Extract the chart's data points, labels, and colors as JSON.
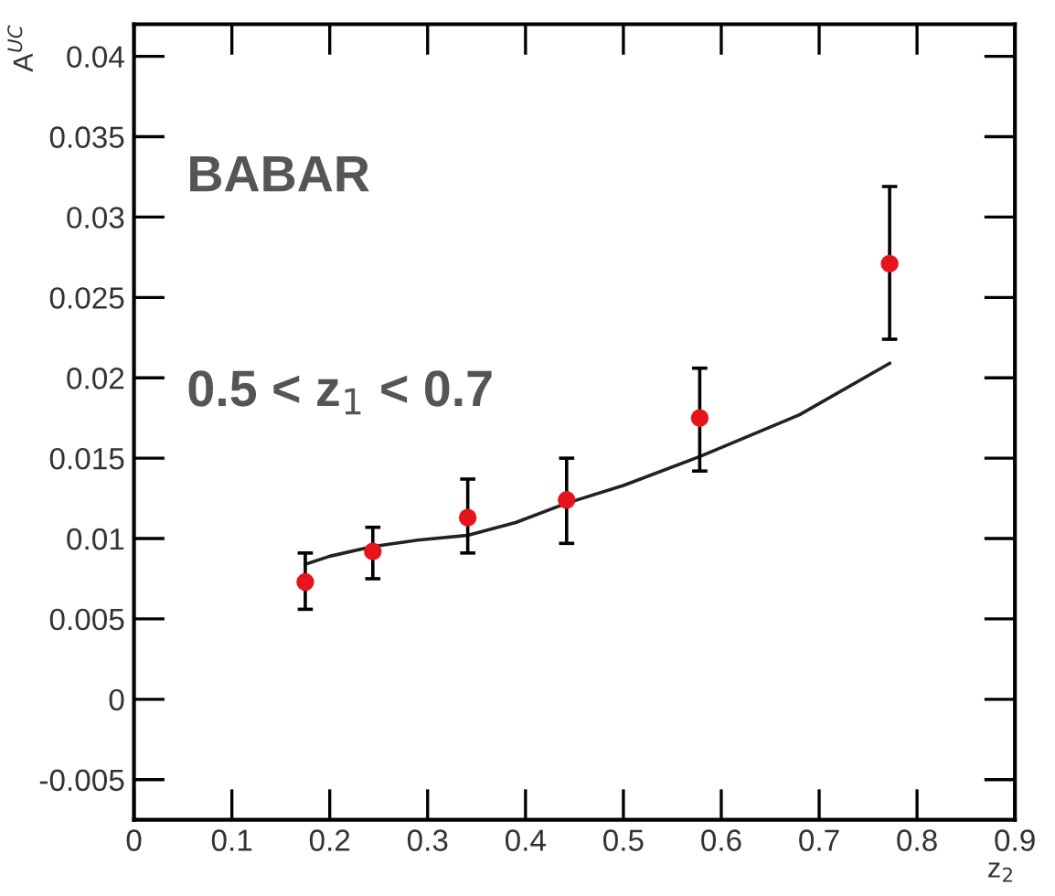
{
  "chart_data": {
    "type": "scatter",
    "xlabel": "z$_{2}$",
    "ylabel": "A$^{UC}$",
    "annotations": [
      "BABAR",
      "0.5 < z$_{1}$ < 0.7"
    ],
    "xlim": [
      0,
      0.9
    ],
    "xticks": [
      0,
      0.1,
      0.2,
      0.3,
      0.4,
      0.5,
      0.6,
      0.7,
      0.8,
      0.9
    ],
    "ylim": [
      -0.0075,
      0.042
    ],
    "yticks": [
      -0.005,
      0,
      0.005,
      0.01,
      0.015,
      0.02,
      0.025,
      0.03,
      0.035,
      0.04
    ],
    "grid": false,
    "legend": false,
    "series": [
      {
        "type": "scatter",
        "color": "#e8141c",
        "marker": "circle",
        "x": [
          0.175,
          0.244,
          0.341,
          0.442,
          0.578,
          0.772
        ],
        "values": [
          0.0073,
          0.0092,
          0.0113,
          0.0124,
          0.0175,
          0.0271
        ],
        "errors": [
          [
            0.0056,
            0.0091
          ],
          [
            0.0075,
            0.0107
          ],
          [
            0.0091,
            0.0137
          ],
          [
            0.0097,
            0.015
          ],
          [
            0.0142,
            0.0206
          ],
          [
            0.0224,
            0.0319
          ]
        ]
      },
      {
        "type": "line",
        "color": "#222222",
        "marker": "none",
        "line_style": "solid",
        "x": [
          0.175,
          0.2,
          0.244,
          0.29,
          0.341,
          0.39,
          0.442,
          0.5,
          0.578,
          0.68,
          0.772
        ],
        "values": [
          0.0084,
          0.0089,
          0.0095,
          0.0099,
          0.0102,
          0.011,
          0.0122,
          0.0133,
          0.0151,
          0.0177,
          0.0209
        ]
      }
    ]
  }
}
